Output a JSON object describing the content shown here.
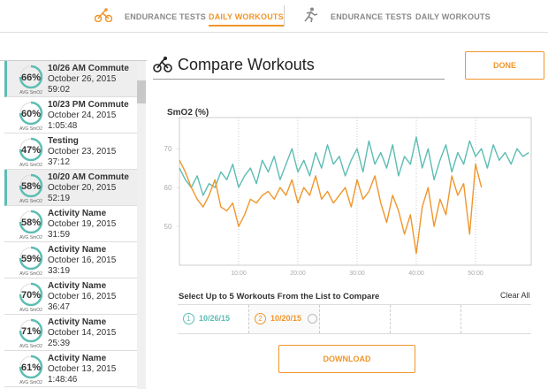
{
  "nav": {
    "left_tabs": [
      "ENDURANCE TESTS",
      "DAILY WORKOUTS"
    ],
    "right_tabs": [
      "ENDURANCE TESTS",
      "DAILY WORKOUTS"
    ]
  },
  "workouts": [
    {
      "score": "66%",
      "avg_label": "AVG SmO2",
      "title": "10/26 AM Commute",
      "date": "October 26, 2015",
      "duration": "59:02",
      "selected": true
    },
    {
      "score": "60%",
      "avg_label": "AVG SmO2",
      "title": "10/23 PM Commute",
      "date": "October 24, 2015",
      "duration": "1:05:48",
      "selected": false
    },
    {
      "score": "47%",
      "avg_label": "AVG SmO2",
      "title": "Testing",
      "date": "October 23, 2015",
      "duration": "37:12",
      "selected": false
    },
    {
      "score": "58%",
      "avg_label": "AVG SmO2",
      "title": "10/20 AM Commute",
      "date": "October 20, 2015",
      "duration": "52:19",
      "selected": true
    },
    {
      "score": "58%",
      "avg_label": "AVG SmO2",
      "title": "Activity Name",
      "date": "October 19, 2015",
      "duration": "31:59",
      "selected": false
    },
    {
      "score": "59%",
      "avg_label": "AVG SmO2",
      "title": "Activity Name",
      "date": "October 16, 2015",
      "duration": "33:19",
      "selected": false
    },
    {
      "score": "70%",
      "avg_label": "AVG SmO2",
      "title": "Activity Name",
      "date": "October 16, 2015",
      "duration": "36:47",
      "selected": false
    },
    {
      "score": "71%",
      "avg_label": "AVG SmO2",
      "title": "Activity Name",
      "date": "October 14, 2015",
      "duration": "25:39",
      "selected": false
    },
    {
      "score": "61%",
      "avg_label": "AVG SmO2",
      "title": "Activity Name",
      "date": "October 13, 2015",
      "duration": "1:48:46",
      "selected": false
    }
  ],
  "compare": {
    "heading": "Compare Workouts",
    "done": "DONE",
    "select_text": "Select Up to 5 Workouts From the List to Compare",
    "clear_all": "Clear All",
    "download": "DOWNLOAD",
    "slots": [
      {
        "number": "1",
        "label": "10/26/15",
        "color": "#5cbdb3"
      },
      {
        "number": "2",
        "label": "10/20/15",
        "color": "#f0962a"
      }
    ]
  },
  "chart_data": {
    "type": "line",
    "title": "SmO2 (%)",
    "x": [
      0,
      1,
      2,
      3,
      4,
      5,
      6,
      7,
      8,
      9,
      10,
      11,
      12,
      13,
      14,
      15,
      16,
      17,
      18,
      19,
      20,
      21,
      22,
      23,
      24,
      25,
      26,
      27,
      28,
      29,
      30,
      31,
      32,
      33,
      34,
      35,
      36,
      37,
      38,
      39,
      40,
      41,
      42,
      43,
      44,
      45,
      46,
      47,
      48,
      49,
      50,
      51,
      52,
      53,
      54,
      55,
      56,
      57,
      58,
      59
    ],
    "series": [
      {
        "name": "10/26/15",
        "color": "#5cbdb3",
        "values": [
          65,
          62,
          60,
          63,
          58,
          61,
          60,
          64,
          62,
          66,
          60,
          63,
          65,
          61,
          67,
          64,
          68,
          62,
          66,
          70,
          64,
          67,
          63,
          69,
          65,
          71,
          66,
          68,
          63,
          67,
          70,
          64,
          72,
          66,
          69,
          65,
          71,
          63,
          68,
          66,
          73,
          65,
          70,
          62,
          67,
          71,
          64,
          69,
          66,
          72,
          68,
          70,
          65,
          71,
          67,
          69,
          66,
          70,
          68,
          69
        ]
      },
      {
        "name": "10/20/15",
        "color": "#f0962a",
        "values": [
          67,
          64,
          60,
          57,
          55,
          58,
          62,
          55,
          54,
          56,
          50,
          53,
          57,
          56,
          58,
          59,
          57,
          60,
          58,
          62,
          56,
          60,
          58,
          63,
          57,
          59,
          56,
          58,
          60,
          55,
          62,
          57,
          59,
          63,
          56,
          51,
          58,
          54,
          48,
          53,
          43,
          55,
          60,
          50,
          57,
          53,
          63,
          58,
          61,
          48,
          66,
          60,
          null,
          null,
          null,
          null,
          null,
          null,
          null,
          null
        ]
      }
    ],
    "xlim": [
      0,
      59.4
    ],
    "ylim": [
      40,
      78
    ],
    "xticks": [
      {
        "value": 10,
        "label": "10:00"
      },
      {
        "value": 20,
        "label": "20:00"
      },
      {
        "value": 30,
        "label": "30:00"
      },
      {
        "value": 40,
        "label": "40:00"
      },
      {
        "value": 50,
        "label": "50:00"
      }
    ],
    "yticks": [
      50,
      60,
      70
    ],
    "grid": true
  }
}
